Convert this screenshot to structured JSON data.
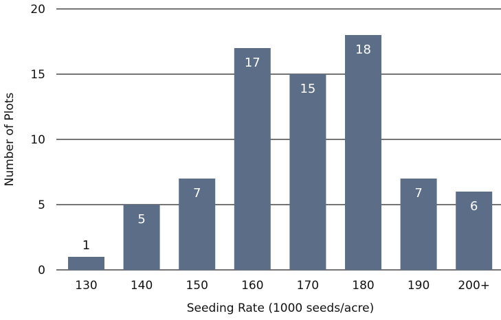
{
  "chart_data": {
    "type": "bar",
    "title": "",
    "xlabel": "Seeding Rate (1000 seeds/acre)",
    "ylabel": "Number of Plots",
    "categories": [
      "130",
      "140",
      "150",
      "160",
      "170",
      "180",
      "190",
      "200+"
    ],
    "values": [
      1,
      5,
      7,
      17,
      15,
      18,
      7,
      6
    ],
    "ylim": [
      0,
      20
    ],
    "yticks": [
      0,
      5,
      10,
      15,
      20
    ],
    "grid": true,
    "legend": "none",
    "colors": {
      "bar": "#5b6d87",
      "label_inside": "#ffffff",
      "label_outside": "#111111",
      "grid": "#222222"
    }
  }
}
